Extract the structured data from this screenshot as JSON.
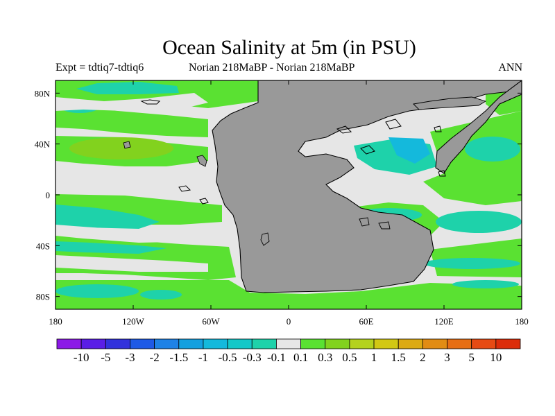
{
  "title": "Ocean Salinity at 5m (in PSU)",
  "subtitle_left": "Expt = tdtiq7-tdtiq6",
  "subtitle_center": "Norian   218MaBP - Norian   218MaBP",
  "subtitle_right": "ANN",
  "lat_labels": [
    "80N",
    "40N",
    "0",
    "40S",
    "80S"
  ],
  "lat_values": [
    80,
    40,
    0,
    -40,
    -80
  ],
  "lon_labels": [
    "180",
    "120W",
    "60W",
    "0",
    "60E",
    "120E",
    "180"
  ],
  "lon_values": [
    -180,
    -120,
    -60,
    0,
    60,
    120,
    180
  ],
  "map_extent": {
    "lon": [
      -180,
      180
    ],
    "lat": [
      -90,
      90
    ]
  },
  "colorbar": {
    "levels": [
      "-10",
      "-5",
      "-3",
      "-2",
      "-1.5",
      "-1",
      "-0.5",
      "-0.3",
      "-0.1",
      "0.1",
      "0.3",
      "0.5",
      "1",
      "1.5",
      "2",
      "3",
      "5",
      "10"
    ],
    "colors": [
      "#8c1ae6",
      "#5a1ee6",
      "#3232dc",
      "#1e5ae6",
      "#1e82e6",
      "#14a0e0",
      "#14b9dc",
      "#14c8c8",
      "#1ed2aa",
      "#e6e6e6",
      "#5ae132",
      "#82d21e",
      "#b4d21e",
      "#d2c814",
      "#dcaa14",
      "#e18c14",
      "#e66e14",
      "#e64b14",
      "#dc2d0a"
    ]
  },
  "colors": {
    "land": "#999999",
    "neutral": "#e6e6e6",
    "green": "#5ae132",
    "lightgreen": "#82d21e",
    "teal": "#1ed2aa",
    "cyan": "#14c8c8",
    "blue": "#14a0e0"
  }
}
